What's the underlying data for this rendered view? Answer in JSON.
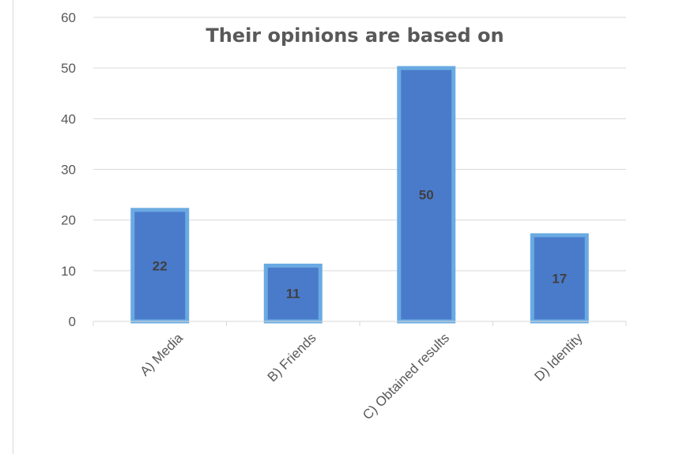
{
  "chart_data": {
    "type": "bar",
    "title": "Their opinions are based on",
    "categories": [
      "A) Media",
      "B) Friends",
      "C) Obtained results",
      "D) Identity"
    ],
    "values": [
      22,
      11,
      50,
      17
    ],
    "ylim": [
      0,
      60
    ],
    "yticks": [
      0,
      10,
      20,
      30,
      40,
      50,
      60
    ],
    "grid": true,
    "legend": "none",
    "bar_color": "#4a7bcb",
    "bar_border_color": "#6aaae2"
  }
}
